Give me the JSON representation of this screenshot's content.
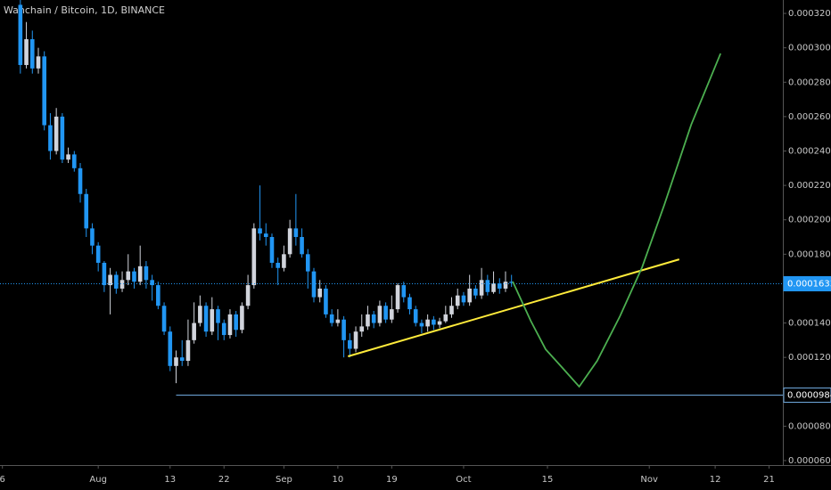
{
  "chart_data": {
    "type": "candlestick",
    "title": "Wanchain / Bitcoin, 1D, BINANCE",
    "up_color": "#d1d4dc",
    "down_color": "#2196f3",
    "xlim": [
      -2.4,
      128.3
    ],
    "ylim": [
      5.74e-05,
      0.0003278
    ],
    "xticks": [
      {
        "value": -2,
        "label": "6"
      },
      {
        "value": 14,
        "label": "Aug"
      },
      {
        "value": 26,
        "label": "13"
      },
      {
        "value": 35,
        "label": "22"
      },
      {
        "value": 45,
        "label": "Sep"
      },
      {
        "value": 54,
        "label": "10"
      },
      {
        "value": 63,
        "label": "19"
      },
      {
        "value": 75,
        "label": "Oct"
      },
      {
        "value": 89,
        "label": "15"
      },
      {
        "value": 106,
        "label": "Nov"
      },
      {
        "value": 117,
        "label": "12"
      },
      {
        "value": 126,
        "label": "21"
      }
    ],
    "yticks": [
      {
        "value": 0.00032,
        "label": "0.0003200"
      },
      {
        "value": 0.0003,
        "label": "0.0003000"
      },
      {
        "value": 0.00028,
        "label": "0.0002800"
      },
      {
        "value": 0.00026,
        "label": "0.0002600"
      },
      {
        "value": 0.00024,
        "label": "0.0002400"
      },
      {
        "value": 0.00022,
        "label": "0.0002200"
      },
      {
        "value": 0.0002,
        "label": "0.0002000"
      },
      {
        "value": 0.00018,
        "label": "0.0001800"
      },
      {
        "value": 0.00014,
        "label": "0.0001400"
      },
      {
        "value": 0.00012,
        "label": "0.0001200"
      },
      {
        "value": 8e-05,
        "label": "0.0000800"
      },
      {
        "value": 6e-05,
        "label": "0.0000600"
      }
    ],
    "x": [
      1,
      2,
      3,
      4,
      5,
      6,
      7,
      8,
      9,
      10,
      11,
      12,
      13,
      14,
      15,
      16,
      17,
      18,
      19,
      20,
      21,
      22,
      23,
      24,
      25,
      26,
      27,
      28,
      29,
      30,
      31,
      32,
      33,
      34,
      35,
      36,
      37,
      38,
      39,
      40,
      41,
      42,
      43,
      44,
      45,
      46,
      47,
      48,
      49,
      50,
      51,
      52,
      53,
      54,
      55,
      56,
      57,
      58,
      59,
      60,
      61,
      62,
      63,
      64,
      65,
      66,
      67,
      68,
      69,
      70,
      71,
      72,
      73,
      74,
      75,
      76,
      77,
      78,
      79,
      80,
      81,
      82,
      83
    ],
    "open": [
      0.000325,
      0.00029,
      0.000305,
      0.000288,
      0.000295,
      0.000255,
      0.00024,
      0.00026,
      0.000235,
      0.000238,
      0.00023,
      0.000215,
      0.000195,
      0.000185,
      0.000175,
      0.000162,
      0.000168,
      0.00016,
      0.000165,
      0.00017,
      0.000164,
      0.000173,
      0.000165,
      0.000162,
      0.00015,
      0.000135,
      0.000115,
      0.00012,
      0.000118,
      0.00013,
      0.00014,
      0.00015,
      0.000135,
      0.000148,
      0.00014,
      0.000133,
      0.000145,
      0.000136,
      0.00015,
      0.000162,
      0.000195,
      0.000192,
      0.00019,
      0.000175,
      0.000172,
      0.00018,
      0.000195,
      0.00019,
      0.00018,
      0.00017,
      0.000155,
      0.00016,
      0.000145,
      0.00014,
      0.000142,
      0.00013,
      0.000125,
      0.000135,
      0.000138,
      0.000145,
      0.00014,
      0.00015,
      0.000142,
      0.000148,
      0.000162,
      0.000155,
      0.000148,
      0.00014,
      0.000138,
      0.000142,
      0.000139,
      0.000141,
      0.000145,
      0.00015,
      0.000156,
      0.000152,
      0.00016,
      0.000156,
      0.000165,
      0.000158,
      0.000163,
      0.00016,
      0.000164
    ],
    "high": [
      0.00033,
      0.000315,
      0.00031,
      0.0003,
      0.000298,
      0.000262,
      0.000265,
      0.000262,
      0.000242,
      0.00024,
      0.000233,
      0.000218,
      0.000198,
      0.000187,
      0.000176,
      0.000172,
      0.00017,
      0.00017,
      0.00018,
      0.000172,
      0.000185,
      0.000176,
      0.000168,
      0.000164,
      0.000152,
      0.000138,
      0.000124,
      0.00013,
      0.000142,
      0.000152,
      0.000156,
      0.000152,
      0.000155,
      0.00015,
      0.000142,
      0.000148,
      0.000147,
      0.000152,
      0.000168,
      0.000198,
      0.00022,
      0.000198,
      0.000192,
      0.000178,
      0.000185,
      0.0002,
      0.000215,
      0.000195,
      0.000183,
      0.000172,
      0.000165,
      0.000162,
      0.000148,
      0.000148,
      0.000144,
      0.000134,
      0.000138,
      0.000145,
      0.00015,
      0.000147,
      0.000153,
      0.000152,
      0.000156,
      0.000163,
      0.000164,
      0.000157,
      0.00015,
      0.000142,
      0.000145,
      0.000144,
      0.000143,
      0.00015,
      0.000155,
      0.00016,
      0.000158,
      0.000168,
      0.000162,
      0.000172,
      0.000168,
      0.00017,
      0.000166,
      0.00017,
      0.000168
    ],
    "low": [
      0.000285,
      0.000288,
      0.000285,
      0.000285,
      0.000252,
      0.000235,
      0.000238,
      0.000233,
      0.000233,
      0.000228,
      0.00021,
      0.00019,
      0.00018,
      0.00017,
      0.000158,
      0.000145,
      0.000157,
      0.000158,
      0.000162,
      0.00016,
      0.000162,
      0.00016,
      0.000153,
      0.000148,
      0.000133,
      0.000112,
      0.000105,
      0.000115,
      0.000115,
      0.000128,
      0.000138,
      0.000132,
      0.000133,
      0.00013,
      0.00013,
      0.000131,
      0.000132,
      0.000134,
      0.000148,
      0.00016,
      0.000188,
      0.000185,
      0.000172,
      0.000162,
      0.00017,
      0.000178,
      0.000185,
      0.000178,
      0.00016,
      0.000152,
      0.000152,
      0.000143,
      0.000138,
      0.000138,
      0.00012,
      0.00012,
      0.000123,
      0.000132,
      0.000136,
      0.000137,
      0.000138,
      0.00014,
      0.00014,
      0.000146,
      0.000152,
      0.000145,
      0.000138,
      0.000134,
      0.000135,
      0.000136,
      0.000137,
      0.00014,
      0.000143,
      0.000148,
      0.00015,
      0.00015,
      0.000154,
      0.000154,
      0.000156,
      0.000157,
      0.000157,
      0.000158,
      0.000161
    ],
    "close": [
      0.00029,
      0.000305,
      0.000288,
      0.000295,
      0.000255,
      0.00024,
      0.00026,
      0.000235,
      0.000238,
      0.00023,
      0.000215,
      0.000195,
      0.000185,
      0.000175,
      0.000162,
      0.000168,
      0.00016,
      0.000165,
      0.00017,
      0.000164,
      0.000173,
      0.000165,
      0.000162,
      0.00015,
      0.000135,
      0.000115,
      0.00012,
      0.000118,
      0.00013,
      0.00014,
      0.00015,
      0.000135,
      0.000148,
      0.00014,
      0.000133,
      0.000145,
      0.000136,
      0.00015,
      0.000162,
      0.000195,
      0.000192,
      0.00019,
      0.000175,
      0.000172,
      0.00018,
      0.000195,
      0.00019,
      0.00018,
      0.00017,
      0.000155,
      0.00016,
      0.000145,
      0.00014,
      0.000142,
      0.00013,
      0.000125,
      0.000135,
      0.000138,
      0.000145,
      0.00014,
      0.00015,
      0.000142,
      0.000148,
      0.000162,
      0.000155,
      0.000148,
      0.00014,
      0.000138,
      0.000142,
      0.000139,
      0.000141,
      0.000145,
      0.00015,
      0.000156,
      0.000152,
      0.00016,
      0.000156,
      0.000165,
      0.000158,
      0.000163,
      0.00016,
      0.000164,
      0.0001633
    ],
    "price_lines": [
      {
        "value": 0.0001633,
        "label": "0.0001633",
        "color": "#2196f3",
        "dotted": true,
        "from": -2.4
      },
      {
        "value": 9.84e-05,
        "label": "0.0000984",
        "color": "#6fa8dc",
        "dotted": false,
        "from": 27
      }
    ],
    "trend_line": {
      "color": "#ffeb3b",
      "x": [
        55.7,
        111.0
      ],
      "values": [
        0.0001206,
        0.000177
      ]
    },
    "projection": {
      "color": "#4caf50",
      "x": [
        83.2,
        86.2,
        88.7,
        91.4,
        94.3,
        97.3,
        101.1,
        104.8,
        108.5,
        113.0,
        117.9
      ],
      "values": [
        0.0001641,
        0.0001413,
        0.0001247,
        0.0001143,
        0.000103,
        0.000118,
        0.0001439,
        0.0001724,
        0.0002086,
        0.0002553,
        0.0002967
      ]
    }
  }
}
